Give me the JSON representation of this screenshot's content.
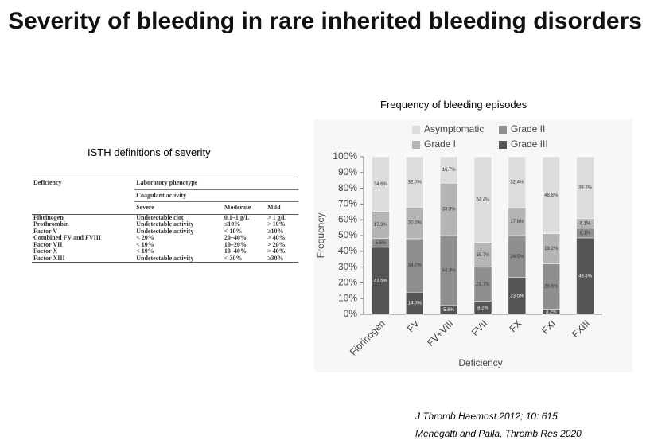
{
  "title": "Severity of bleeding in rare inherited bleeding disorders",
  "table": {
    "caption": "ISTH definitions of severity",
    "header": [
      "Deficiency",
      "Laboratory phenotype",
      "Coagulant activity",
      "Severe",
      "Moderate",
      "Mild"
    ],
    "rows": [
      [
        "Fibrinogen",
        "Undetectable clot",
        "0.1–1 g/L",
        "> 1 g/L"
      ],
      [
        "Prothrombin",
        "Undetectable activity",
        "≤10%",
        "> 10%"
      ],
      [
        "Factor V",
        "Undetectable activity",
        "< 10%",
        "≥10%"
      ],
      [
        "Combined FV and FVIII",
        "< 20%",
        "20–40%",
        "> 40%"
      ],
      [
        "Factor VII",
        "< 10%",
        "10–20%",
        "> 20%"
      ],
      [
        "Factor X",
        "< 10%",
        "10–40%",
        "> 40%"
      ],
      [
        "Factor XIII",
        "Undetectable activity",
        "< 30%",
        "≥30%"
      ]
    ]
  },
  "chart_data": {
    "type": "stacked_bar",
    "title": "Frequency of bleeding episodes",
    "x_label": "Deficiency",
    "y_label": "Frequency",
    "categories": [
      "Fibrinogen",
      "FV",
      "FV+VIII",
      "FVII",
      "FX",
      "FXI",
      "FXIII"
    ],
    "series": [
      {
        "name": "Grade III",
        "color": "#555555",
        "values": [
          42.5,
          14.0,
          5.6,
          8.2,
          23.5,
          3.2,
          48.5
        ],
        "value_labels": [
          "42.5%",
          "14.0%",
          "5.6%",
          "8.2%",
          "23.5%",
          "3.2%",
          "48.5%"
        ]
      },
      {
        "name": "Grade II",
        "color": "#8f8f8f",
        "values": [
          5.6,
          34.0,
          44.4,
          21.7,
          26.5,
          28.8,
          6.1
        ],
        "value_labels": [
          "5.6%",
          "34.0%",
          "44.4%",
          "21.7%",
          "26.5%",
          "28.8%",
          "6.1%"
        ]
      },
      {
        "name": "Grade I",
        "color": "#b5b5b5",
        "values": [
          17.3,
          20.0,
          33.3,
          15.7,
          17.6,
          19.2,
          6.1
        ],
        "value_labels": [
          "17.3%",
          "20.0%",
          "33.3%",
          "15.7%",
          "17.6%",
          "19.2%",
          "6.1%"
        ]
      },
      {
        "name": "Asymptomatic",
        "color": "#dcdcdc",
        "values": [
          34.6,
          32.0,
          16.7,
          54.4,
          32.4,
          48.8,
          39.3
        ],
        "value_labels": [
          "34.6%",
          "32.0%",
          "16.7%",
          "54.4%",
          "32.4%",
          "48.8%",
          "39.3%"
        ]
      }
    ],
    "ylim": [
      0,
      100
    ],
    "yticks": [
      {
        "value": 0,
        "label": "0%"
      },
      {
        "value": 10,
        "label": "10%"
      },
      {
        "value": 20,
        "label": "20%"
      },
      {
        "value": 30,
        "label": "30%"
      },
      {
        "value": 40,
        "label": "40%"
      },
      {
        "value": 50,
        "label": "50%"
      },
      {
        "value": 60,
        "label": "60%"
      },
      {
        "value": 70,
        "label": "70%"
      },
      {
        "value": 80,
        "label": "80%"
      },
      {
        "value": 90,
        "label": "90%"
      },
      {
        "value": 100,
        "label": "100%"
      }
    ]
  },
  "citations": [
    "J Thromb Haemost 2012; 10: 615",
    "Menegatti and Palla, Thromb Res 2020"
  ]
}
